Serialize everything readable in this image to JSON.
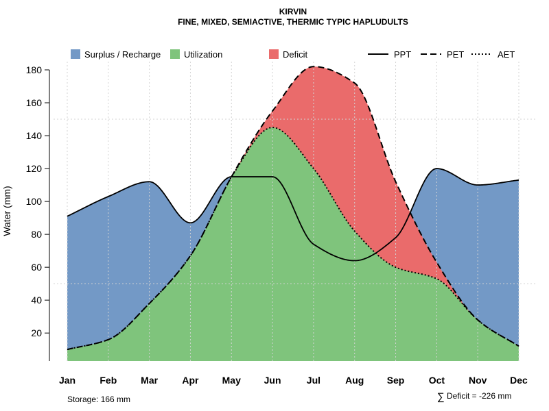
{
  "chart_data": {
    "type": "area",
    "title": "KIRVIN",
    "subtitle": "FINE, MIXED, SEMIACTIVE, THERMIC TYPIC HAPLUDULTS",
    "xlabel": "",
    "ylabel": "Water (mm)",
    "categories": [
      "Jan",
      "Feb",
      "Mar",
      "Apr",
      "May",
      "Jun",
      "Jul",
      "Aug",
      "Sep",
      "Oct",
      "Nov",
      "Dec"
    ],
    "ylim": [
      3,
      185
    ],
    "yticks": [
      20,
      40,
      60,
      80,
      100,
      120,
      140,
      160,
      180
    ],
    "series": [
      {
        "name": "PPT",
        "style": "solid",
        "values": [
          91,
          103,
          112,
          87,
          115,
          115,
          74,
          64,
          78,
          120,
          110,
          113
        ]
      },
      {
        "name": "PET",
        "style": "dashed",
        "values": [
          10,
          16,
          38,
          67,
          115,
          155,
          182,
          172,
          112,
          63,
          28,
          12
        ]
      },
      {
        "name": "AET",
        "style": "dotted",
        "values": [
          10,
          16,
          38,
          67,
          115,
          145,
          120,
          82,
          60,
          53,
          28,
          12
        ]
      }
    ],
    "fills": [
      {
        "name": "Surplus / Recharge",
        "color": "#7399C6"
      },
      {
        "name": "Utilization",
        "color": "#7FC47C"
      },
      {
        "name": "Deficit",
        "color": "#EA6B6B"
      }
    ],
    "legend": {
      "fills": [
        "Surplus / Recharge",
        "Utilization",
        "Deficit"
      ],
      "lines": [
        "PPT",
        "PET",
        "AET"
      ],
      "position": "top"
    },
    "grid": true
  },
  "footer": {
    "storage_label": "Storage: 166 mm",
    "deficit_symbol": "∑",
    "deficit_label": "Deficit = -226 mm"
  }
}
